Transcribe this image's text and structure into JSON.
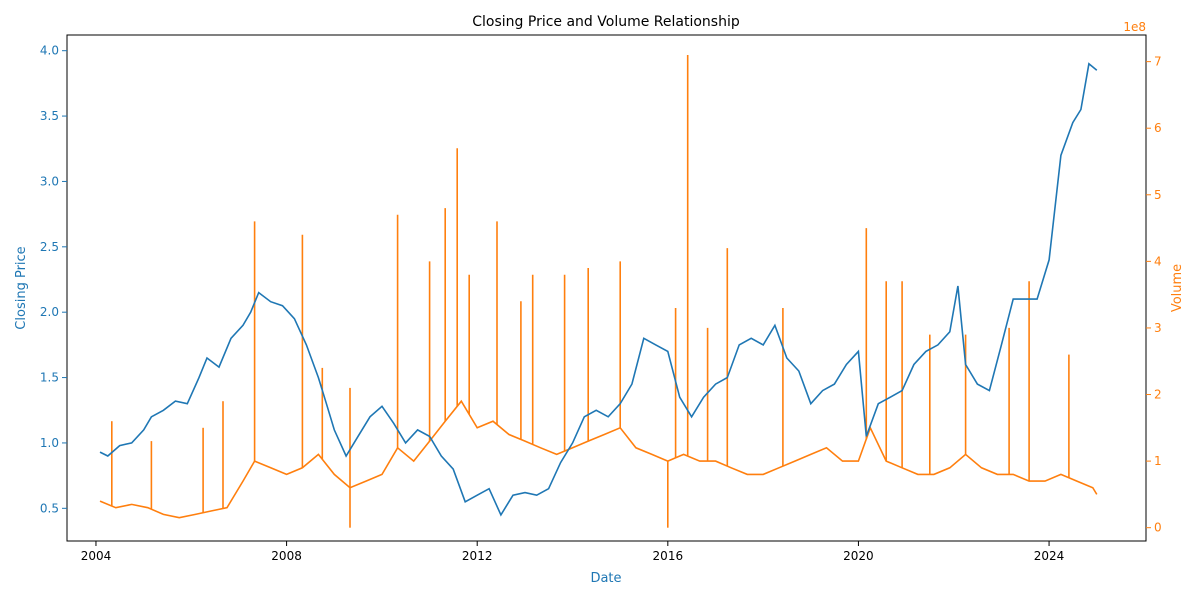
{
  "chart_data": {
    "type": "line",
    "title": "Closing Price and Volume Relationship",
    "xlabel": "Date",
    "ylabel_left": "Closing Price",
    "ylabel_right": "Volume",
    "right_axis_multiplier": "1e8",
    "x_range": [
      "2003-05-24",
      "2026-01-13"
    ],
    "x_ticks": [
      "2004",
      "2008",
      "2012",
      "2016",
      "2020",
      "2024"
    ],
    "ylim_left": [
      0.25,
      4.12
    ],
    "y_ticks_left": [
      "0.5",
      "1.0",
      "1.5",
      "2.0",
      "2.5",
      "3.0",
      "3.5",
      "4.0"
    ],
    "ylim_right": [
      -0.2,
      7.4
    ],
    "y_ticks_right": [
      "0",
      "1",
      "2",
      "3",
      "4",
      "5",
      "6",
      "7"
    ],
    "grid": false,
    "colors": {
      "price": "#1f77b4",
      "volume": "#ff7f0e",
      "axis": "#000000"
    },
    "series": [
      {
        "axis": "left",
        "color": "#1f77b4",
        "points": [
          [
            "2004-02-01",
            0.93
          ],
          [
            "2004-04-01",
            0.9
          ],
          [
            "2004-07-01",
            0.98
          ],
          [
            "2004-10-01",
            1.0
          ],
          [
            "2005-01-01",
            1.1
          ],
          [
            "2005-03-01",
            1.2
          ],
          [
            "2005-06-01",
            1.25
          ],
          [
            "2005-09-01",
            1.32
          ],
          [
            "2005-12-01",
            1.3
          ],
          [
            "2006-03-01",
            1.5
          ],
          [
            "2006-05-01",
            1.65
          ],
          [
            "2006-08-01",
            1.58
          ],
          [
            "2006-11-01",
            1.8
          ],
          [
            "2007-02-01",
            1.9
          ],
          [
            "2007-04-01",
            2.0
          ],
          [
            "2007-06-01",
            2.15
          ],
          [
            "2007-09-01",
            2.08
          ],
          [
            "2007-12-01",
            2.05
          ],
          [
            "2008-03-01",
            1.95
          ],
          [
            "2008-06-01",
            1.75
          ],
          [
            "2008-09-01",
            1.5
          ],
          [
            "2008-11-01",
            1.3
          ],
          [
            "2009-01-01",
            1.1
          ],
          [
            "2009-04-01",
            0.9
          ],
          [
            "2009-07-01",
            1.05
          ],
          [
            "2009-10-01",
            1.2
          ],
          [
            "2010-01-01",
            1.28
          ],
          [
            "2010-04-01",
            1.15
          ],
          [
            "2010-07-01",
            1.0
          ],
          [
            "2010-10-01",
            1.1
          ],
          [
            "2011-01-01",
            1.05
          ],
          [
            "2011-04-01",
            0.9
          ],
          [
            "2011-07-01",
            0.8
          ],
          [
            "2011-10-01",
            0.55
          ],
          [
            "2012-01-01",
            0.6
          ],
          [
            "2012-04-01",
            0.65
          ],
          [
            "2012-07-01",
            0.45
          ],
          [
            "2012-10-01",
            0.6
          ],
          [
            "2013-01-01",
            0.62
          ],
          [
            "2013-04-01",
            0.6
          ],
          [
            "2013-07-01",
            0.65
          ],
          [
            "2013-10-01",
            0.85
          ],
          [
            "2014-01-01",
            1.0
          ],
          [
            "2014-04-01",
            1.2
          ],
          [
            "2014-07-01",
            1.25
          ],
          [
            "2014-10-01",
            1.2
          ],
          [
            "2015-01-01",
            1.3
          ],
          [
            "2015-04-01",
            1.45
          ],
          [
            "2015-07-01",
            1.8
          ],
          [
            "2015-10-01",
            1.75
          ],
          [
            "2016-01-01",
            1.7
          ],
          [
            "2016-04-01",
            1.35
          ],
          [
            "2016-07-01",
            1.2
          ],
          [
            "2016-10-01",
            1.35
          ],
          [
            "2017-01-01",
            1.45
          ],
          [
            "2017-04-01",
            1.5
          ],
          [
            "2017-07-01",
            1.75
          ],
          [
            "2017-10-01",
            1.8
          ],
          [
            "2018-01-01",
            1.75
          ],
          [
            "2018-04-01",
            1.9
          ],
          [
            "2018-07-01",
            1.65
          ],
          [
            "2018-10-01",
            1.55
          ],
          [
            "2019-01-01",
            1.3
          ],
          [
            "2019-04-01",
            1.4
          ],
          [
            "2019-07-01",
            1.45
          ],
          [
            "2019-10-01",
            1.6
          ],
          [
            "2020-01-01",
            1.7
          ],
          [
            "2020-03-01",
            1.05
          ],
          [
            "2020-06-01",
            1.3
          ],
          [
            "2020-09-01",
            1.35
          ],
          [
            "2020-12-01",
            1.4
          ],
          [
            "2021-03-01",
            1.6
          ],
          [
            "2021-06-01",
            1.7
          ],
          [
            "2021-09-01",
            1.75
          ],
          [
            "2021-12-01",
            1.85
          ],
          [
            "2022-02-01",
            2.2
          ],
          [
            "2022-04-01",
            1.6
          ],
          [
            "2022-07-01",
            1.45
          ],
          [
            "2022-10-01",
            1.4
          ],
          [
            "2023-01-01",
            1.75
          ],
          [
            "2023-04-01",
            2.1
          ],
          [
            "2023-07-01",
            2.1
          ],
          [
            "2023-10-01",
            2.1
          ],
          [
            "2024-01-01",
            2.4
          ],
          [
            "2024-04-01",
            3.2
          ],
          [
            "2024-07-01",
            3.45
          ],
          [
            "2024-09-01",
            3.55
          ],
          [
            "2024-11-01",
            3.9
          ],
          [
            "2025-01-01",
            3.85
          ]
        ]
      },
      {
        "axis": "right",
        "color": "#ff7f0e",
        "points": [
          [
            "2004-02-01",
            0.4
          ],
          [
            "2004-06-01",
            0.3
          ],
          [
            "2004-10-01",
            0.35
          ],
          [
            "2005-02-01",
            0.3
          ],
          [
            "2005-06-01",
            0.2
          ],
          [
            "2005-10-01",
            0.15
          ],
          [
            "2006-02-01",
            0.2
          ],
          [
            "2006-06-01",
            0.25
          ],
          [
            "2006-10-01",
            0.3
          ],
          [
            "2007-02-01",
            0.7
          ],
          [
            "2007-05-01",
            1.0
          ],
          [
            "2007-09-01",
            0.9
          ],
          [
            "2008-01-01",
            0.8
          ],
          [
            "2008-05-01",
            0.9
          ],
          [
            "2008-09-01",
            1.1
          ],
          [
            "2009-01-01",
            0.8
          ],
          [
            "2009-05-01",
            0.6
          ],
          [
            "2009-09-01",
            0.7
          ],
          [
            "2010-01-01",
            0.8
          ],
          [
            "2010-05-01",
            1.2
          ],
          [
            "2010-09-01",
            1.0
          ],
          [
            "2011-01-01",
            1.3
          ],
          [
            "2011-05-01",
            1.6
          ],
          [
            "2011-09-01",
            1.9
          ],
          [
            "2012-01-01",
            1.5
          ],
          [
            "2012-05-01",
            1.6
          ],
          [
            "2012-09-01",
            1.4
          ],
          [
            "2013-01-01",
            1.3
          ],
          [
            "2013-05-01",
            1.2
          ],
          [
            "2013-09-01",
            1.1
          ],
          [
            "2014-01-01",
            1.2
          ],
          [
            "2014-05-01",
            1.3
          ],
          [
            "2014-09-01",
            1.4
          ],
          [
            "2015-01-01",
            1.5
          ],
          [
            "2015-05-01",
            1.2
          ],
          [
            "2015-09-01",
            1.1
          ],
          [
            "2016-01-01",
            1.0
          ],
          [
            "2016-05-01",
            1.1
          ],
          [
            "2016-09-01",
            1.0
          ],
          [
            "2017-01-01",
            1.0
          ],
          [
            "2017-05-01",
            0.9
          ],
          [
            "2017-09-01",
            0.8
          ],
          [
            "2018-01-01",
            0.8
          ],
          [
            "2018-05-01",
            0.9
          ],
          [
            "2018-09-01",
            1.0
          ],
          [
            "2019-01-01",
            1.1
          ],
          [
            "2019-05-01",
            1.2
          ],
          [
            "2019-09-01",
            1.0
          ],
          [
            "2020-01-01",
            1.0
          ],
          [
            "2020-04-01",
            1.5
          ],
          [
            "2020-08-01",
            1.0
          ],
          [
            "2020-12-01",
            0.9
          ],
          [
            "2021-04-01",
            0.8
          ],
          [
            "2021-08-01",
            0.8
          ],
          [
            "2021-12-01",
            0.9
          ],
          [
            "2022-04-01",
            1.1
          ],
          [
            "2022-08-01",
            0.9
          ],
          [
            "2022-12-01",
            0.8
          ],
          [
            "2023-04-01",
            0.8
          ],
          [
            "2023-08-01",
            0.7
          ],
          [
            "2023-12-01",
            0.7
          ],
          [
            "2024-04-01",
            0.8
          ],
          [
            "2024-08-01",
            0.7
          ],
          [
            "2024-12-01",
            0.6
          ],
          [
            "2025-01-01",
            0.5
          ]
        ],
        "spikes": [
          [
            "2004-05-01",
            1.6
          ],
          [
            "2005-03-01",
            1.3
          ],
          [
            "2006-04-01",
            1.5
          ],
          [
            "2006-09-01",
            1.9
          ],
          [
            "2007-05-01",
            4.6
          ],
          [
            "2008-05-01",
            4.4
          ],
          [
            "2008-10-01",
            2.4
          ],
          [
            "2009-05-01",
            2.1
          ],
          [
            "2010-05-01",
            4.7
          ],
          [
            "2011-01-01",
            4.0
          ],
          [
            "2011-05-01",
            4.8
          ],
          [
            "2011-08-01",
            5.7
          ],
          [
            "2011-11-01",
            3.8
          ],
          [
            "2012-06-01",
            4.6
          ],
          [
            "2012-12-01",
            3.4
          ],
          [
            "2013-03-01",
            3.8
          ],
          [
            "2013-11-01",
            3.8
          ],
          [
            "2014-05-01",
            3.9
          ],
          [
            "2015-01-01",
            4.0
          ],
          [
            "2016-03-01",
            3.3
          ],
          [
            "2016-06-01",
            7.1
          ],
          [
            "2016-11-01",
            3.0
          ],
          [
            "2017-04-01",
            4.2
          ],
          [
            "2018-06-01",
            3.3
          ],
          [
            "2020-03-01",
            4.5
          ],
          [
            "2020-08-01",
            3.7
          ],
          [
            "2020-12-01",
            3.7
          ],
          [
            "2021-07-01",
            2.9
          ],
          [
            "2022-04-01",
            2.9
          ],
          [
            "2023-03-01",
            3.0
          ],
          [
            "2023-08-01",
            3.7
          ],
          [
            "2024-06-01",
            2.6
          ],
          [
            "2016-01-01",
            0.0
          ],
          [
            "2009-05-01",
            0.0
          ]
        ]
      }
    ]
  }
}
